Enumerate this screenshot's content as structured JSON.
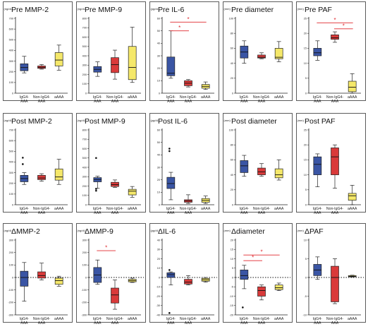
{
  "colors": {
    "IgG4": "#3a55a4",
    "NonIgG4": "#d93a3a",
    "aAAA": "#f5e86a",
    "sig": "#e0282e"
  },
  "group_labels": [
    [
      "IgG4-",
      "AAA"
    ],
    [
      "Non-IgG4-",
      "AAA"
    ],
    [
      "aAAA"
    ]
  ],
  "chart_data": [
    {
      "id": "pre-mmp2",
      "type": "box",
      "title": "Pre MMP-2",
      "unit": "(ng/dL)",
      "ylim": [
        0,
        700
      ],
      "yticks": [
        0,
        100,
        200,
        300,
        400,
        500,
        600,
        700
      ],
      "ytick_labels": [
        "0",
        "100",
        "200",
        "300",
        "400",
        "500",
        "600",
        "700"
      ],
      "boxes": [
        {
          "min": 190,
          "q1": 210,
          "median": 240,
          "q3": 275,
          "max": 345,
          "outliers": []
        },
        {
          "min": 225,
          "q1": 232,
          "median": 242,
          "q3": 255,
          "max": 268,
          "outliers": []
        },
        {
          "min": 215,
          "q1": 255,
          "median": 310,
          "q3": 380,
          "max": 450,
          "outliers": []
        }
      ],
      "sig": []
    },
    {
      "id": "pre-mmp9",
      "type": "box",
      "title": "Pre MMP-9",
      "unit": "(ng/dL)",
      "ylim": [
        0,
        800
      ],
      "yticks": [
        0,
        100,
        200,
        300,
        400,
        500,
        600,
        700,
        800
      ],
      "ytick_labels": [
        "0",
        "100",
        "200",
        "300",
        "400",
        "500",
        "600",
        "700",
        "800"
      ],
      "boxes": [
        {
          "min": 180,
          "q1": 225,
          "median": 255,
          "q3": 285,
          "max": 335,
          "outliers": []
        },
        {
          "min": 150,
          "q1": 220,
          "median": 305,
          "q3": 380,
          "max": 460,
          "outliers": []
        },
        {
          "min": 115,
          "q1": 145,
          "median": 275,
          "q3": 500,
          "max": 705,
          "outliers": []
        }
      ],
      "sig": []
    },
    {
      "id": "pre-il6",
      "type": "box",
      "title": "Pre IL-6",
      "unit": "(pg/dL)",
      "ylim": [
        0,
        60
      ],
      "yticks": [
        0,
        10,
        20,
        30,
        40,
        50,
        60
      ],
      "ytick_labels": [
        "0",
        "10",
        "20",
        "30",
        "40",
        "50",
        "60"
      ],
      "boxes": [
        {
          "min": 12,
          "q1": 14,
          "median": 16,
          "q3": 29,
          "max": 50,
          "outliers": []
        },
        {
          "min": 5,
          "q1": 6,
          "median": 8,
          "q3": 10,
          "max": 11,
          "outliers": []
        },
        {
          "min": 3,
          "q1": 4,
          "median": 5.5,
          "q3": 7,
          "max": 9,
          "outliers": []
        }
      ],
      "sig": [
        {
          "from": 0,
          "to": 2,
          "y": 57,
          "label": "*"
        },
        {
          "from": 0,
          "to": 1,
          "y": 50,
          "label": "*"
        }
      ]
    },
    {
      "id": "pre-diameter",
      "type": "box",
      "title": "Pre diameter",
      "unit": "(mm)",
      "ylim": [
        0,
        100
      ],
      "yticks": [
        0,
        20,
        40,
        60,
        80,
        100
      ],
      "ytick_labels": [
        "0",
        "20",
        "40",
        "60",
        "80",
        "100"
      ],
      "boxes": [
        {
          "min": 40,
          "q1": 47,
          "median": 55,
          "q3": 63,
          "max": 70,
          "outliers": []
        },
        {
          "min": 46,
          "q1": 47,
          "median": 48,
          "q3": 51,
          "max": 54,
          "outliers": []
        },
        {
          "min": 42,
          "q1": 46,
          "median": 48,
          "q3": 60,
          "max": 69,
          "outliers": []
        }
      ],
      "sig": []
    },
    {
      "id": "pre-paf",
      "type": "box",
      "title": "Pre PAF",
      "unit": "(mm)",
      "ylim": [
        0,
        25
      ],
      "yticks": [
        0,
        5,
        10,
        15,
        20,
        25
      ],
      "ytick_labels": [
        "0",
        "5",
        "10",
        "15",
        "20",
        "25"
      ],
      "boxes": [
        {
          "min": 11,
          "q1": 12.5,
          "median": 13.5,
          "q3": 15,
          "max": 17.5,
          "outliers": []
        },
        {
          "min": 17,
          "q1": 18,
          "median": 18.5,
          "q3": 19.5,
          "max": 20.5,
          "outliers": []
        },
        {
          "min": 0,
          "q1": 0.5,
          "median": 2,
          "q3": 4,
          "max": 6.5,
          "outliers": []
        }
      ],
      "sig": [
        {
          "from": 0,
          "to": 2,
          "y": 23.5,
          "label": "*"
        },
        {
          "from": 1,
          "to": 2,
          "y": 21.5,
          "label": "*"
        }
      ]
    },
    {
      "id": "post-mmp2",
      "type": "box",
      "title": "Post MMP-2",
      "unit": "(ng/dL)",
      "ylim": [
        0,
        700
      ],
      "yticks": [
        0,
        100,
        200,
        300,
        400,
        500,
        600,
        700
      ],
      "ytick_labels": [
        "0",
        "100",
        "200",
        "300",
        "400",
        "500",
        "600",
        "700"
      ],
      "boxes": [
        {
          "min": 190,
          "q1": 215,
          "median": 245,
          "q3": 275,
          "max": 300,
          "outliers": [
            380,
            440
          ]
        },
        {
          "min": 220,
          "q1": 235,
          "median": 250,
          "q3": 275,
          "max": 290,
          "outliers": []
        },
        {
          "min": 190,
          "q1": 230,
          "median": 260,
          "q3": 335,
          "max": 425,
          "outliers": []
        }
      ],
      "sig": []
    },
    {
      "id": "post-mmp9",
      "type": "box",
      "title": "Post MMP-9",
      "unit": "(ng/dL)",
      "ylim": [
        0,
        800
      ],
      "yticks": [
        0,
        100,
        200,
        300,
        400,
        500,
        600,
        700,
        800
      ],
      "ytick_labels": [
        "0",
        "100",
        "200",
        "300",
        "400",
        "500",
        "600",
        "700",
        "800"
      ],
      "boxes": [
        {
          "min": 175,
          "q1": 245,
          "median": 270,
          "q3": 290,
          "max": 305,
          "outliers": [
            150,
            170,
            500
          ]
        },
        {
          "min": 185,
          "q1": 195,
          "median": 215,
          "q3": 240,
          "max": 265,
          "outliers": []
        },
        {
          "min": 80,
          "q1": 105,
          "median": 145,
          "q3": 165,
          "max": 195,
          "outliers": []
        }
      ],
      "sig": []
    },
    {
      "id": "post-il6",
      "type": "box",
      "title": "Post IL-6",
      "unit": "(pg/dL)",
      "ylim": [
        0,
        60
      ],
      "yticks": [
        0,
        10,
        20,
        30,
        40,
        50,
        60
      ],
      "ytick_labels": [
        "0",
        "10",
        "20",
        "30",
        "40",
        "50",
        "60"
      ],
      "boxes": [
        {
          "min": 4,
          "q1": 13,
          "median": 17,
          "q3": 22,
          "max": 26,
          "outliers": [
            43,
            45
          ]
        },
        {
          "min": 1,
          "q1": 2,
          "median": 3,
          "q3": 4,
          "max": 8,
          "outliers": []
        },
        {
          "min": 1,
          "q1": 2,
          "median": 3.5,
          "q3": 5,
          "max": 7,
          "outliers": []
        }
      ],
      "sig": []
    },
    {
      "id": "post-diameter",
      "type": "box",
      "title": "Post diameter",
      "unit": "(mm)",
      "ylim": [
        0,
        100
      ],
      "yticks": [
        0,
        20,
        40,
        60,
        80,
        100
      ],
      "ytick_labels": [
        "0",
        "20",
        "40",
        "60",
        "80",
        "100"
      ],
      "boxes": [
        {
          "min": 38,
          "q1": 43,
          "median": 52,
          "q3": 59,
          "max": 66,
          "outliers": []
        },
        {
          "min": 38,
          "q1": 40,
          "median": 44,
          "q3": 49,
          "max": 55,
          "outliers": []
        },
        {
          "min": 33,
          "q1": 36,
          "median": 40,
          "q3": 48,
          "max": 60,
          "outliers": []
        }
      ],
      "sig": []
    },
    {
      "id": "post-paf",
      "type": "box",
      "title": "Post PAF",
      "unit": "(mm)",
      "ylim": [
        0,
        25
      ],
      "yticks": [
        0,
        5,
        10,
        15,
        20,
        25
      ],
      "ytick_labels": [
        "0",
        "5",
        "10",
        "15",
        "20",
        "25"
      ],
      "boxes": [
        {
          "min": 6,
          "q1": 10,
          "median": 13.5,
          "q3": 16,
          "max": 17,
          "outliers": []
        },
        {
          "min": 5.5,
          "q1": 10,
          "median": 16,
          "q3": 19,
          "max": 20,
          "outliers": []
        },
        {
          "min": 0,
          "q1": 1.5,
          "median": 3,
          "q3": 3.8,
          "max": 6.5,
          "outliers": []
        }
      ],
      "sig": []
    },
    {
      "id": "delta-mmp2",
      "type": "box",
      "title": "ΔMMP-2",
      "unit": "(ng/dL)",
      "ylim": [
        -300,
        300
      ],
      "yticks": [
        -300,
        -200,
        -100,
        0,
        100,
        200,
        300
      ],
      "ytick_labels": [
        "-300",
        "-200",
        "-100",
        "0",
        "100",
        "200",
        "300"
      ],
      "zero_line": true,
      "boxes": [
        {
          "min": -190,
          "q1": -70,
          "median": 0,
          "q3": 50,
          "max": 120,
          "outliers": []
        },
        {
          "min": -20,
          "q1": -5,
          "median": 15,
          "q3": 45,
          "max": 115,
          "outliers": []
        },
        {
          "min": -70,
          "q1": -55,
          "median": -25,
          "q3": -5,
          "max": 10,
          "outliers": []
        }
      ],
      "sig": []
    },
    {
      "id": "delta-mmp9",
      "type": "box",
      "title": "ΔMMP-9",
      "unit": "(ng/dL)",
      "ylim": [
        -300,
        300
      ],
      "yticks": [
        -300,
        -200,
        -100,
        0,
        100,
        200,
        300
      ],
      "ytick_labels": [
        "-300",
        "-200",
        "-100",
        "0",
        "100",
        "200",
        "300"
      ],
      "zero_line": true,
      "boxes": [
        {
          "min": -55,
          "q1": -40,
          "median": 20,
          "q3": 80,
          "max": 140,
          "outliers": []
        },
        {
          "min": -255,
          "q1": -205,
          "median": -140,
          "q3": -85,
          "max": -20,
          "outliers": []
        },
        {
          "min": -40,
          "q1": -35,
          "median": -25,
          "q3": -15,
          "max": -5,
          "outliers": []
        }
      ],
      "sig": [
        {
          "from": 0,
          "to": 1,
          "y": 215,
          "label": "*"
        }
      ]
    },
    {
      "id": "delta-il6",
      "type": "box",
      "title": "ΔIL-6",
      "unit": "(pg/dL)",
      "ylim": [
        -40,
        40
      ],
      "yticks": [
        -40,
        -30,
        -20,
        -10,
        0,
        10,
        20,
        30,
        40
      ],
      "ytick_labels": [
        "-40",
        "-30",
        "-20",
        "-10",
        "0",
        "10",
        "20",
        "30",
        "40"
      ],
      "zero_line": true,
      "boxes": [
        {
          "min": -8,
          "q1": 0,
          "median": 3,
          "q3": 5,
          "max": 6,
          "outliers": [
            8,
            -38
          ]
        },
        {
          "min": -8,
          "q1": -7,
          "median": -5,
          "q3": -2,
          "max": 2,
          "outliers": []
        },
        {
          "min": -5,
          "q1": -4,
          "median": -2.5,
          "q3": -1,
          "max": 0,
          "outliers": []
        }
      ],
      "sig": []
    },
    {
      "id": "delta-diameter",
      "type": "box",
      "title": "Δdiameter",
      "unit": "(mm)",
      "ylim": [
        -20,
        20
      ],
      "yticks": [
        -20,
        -15,
        -10,
        -5,
        0,
        5,
        10,
        15,
        20
      ],
      "ytick_labels": [
        "-20",
        "-15",
        "-10",
        "-5",
        "0",
        "5",
        "10",
        "15",
        "20"
      ],
      "zero_line": true,
      "boxes": [
        {
          "min": -6,
          "q1": -1,
          "median": 1,
          "q3": 4,
          "max": 6.5,
          "outliers": [
            -16
          ]
        },
        {
          "min": -12,
          "q1": -10,
          "median": -7,
          "q3": -5,
          "max": -4,
          "outliers": []
        },
        {
          "min": -7,
          "q1": -6.5,
          "median": -5.5,
          "q3": -4,
          "max": -3,
          "outliers": []
        }
      ],
      "sig": [
        {
          "from": 0,
          "to": 2,
          "y": 12,
          "label": "*"
        },
        {
          "from": 0,
          "to": 1,
          "y": 9,
          "label": "*"
        }
      ]
    },
    {
      "id": "delta-paf",
      "type": "box",
      "title": "ΔPAF",
      "unit": "(mm)",
      "ylim": [
        -10,
        10
      ],
      "yticks": [
        -10,
        -5,
        0,
        5,
        10
      ],
      "ytick_labels": [
        "-10",
        "-5",
        "0",
        "5",
        "10"
      ],
      "zero_line": true,
      "boxes": [
        {
          "min": -0.5,
          "q1": 0.5,
          "median": 2,
          "q3": 3.5,
          "max": 5.5,
          "outliers": []
        },
        {
          "min": -7,
          "q1": -6.5,
          "median": 0,
          "q3": 3,
          "max": 5,
          "outliers": []
        },
        {
          "min": 0.1,
          "q1": 0.2,
          "median": 0.3,
          "q3": 0.5,
          "max": 0.6,
          "outliers": []
        }
      ],
      "sig": []
    }
  ]
}
